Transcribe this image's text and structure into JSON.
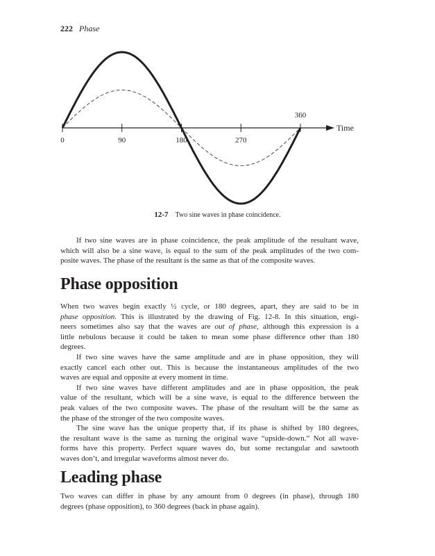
{
  "header": {
    "page_number": "222",
    "running_title": "Phase"
  },
  "figure": {
    "number": "12-7",
    "caption": "Two sine waves in phase coincidence.",
    "axis_label": "Time",
    "tick_labels": [
      "0",
      "90",
      "180",
      "270",
      "360"
    ],
    "tick_values": [
      0,
      90,
      180,
      270,
      360
    ],
    "series": [
      {
        "style": "solid-bold",
        "relative_amplitude": 2
      },
      {
        "style": "dashed",
        "relative_amplitude": 1
      }
    ]
  },
  "paragraphs_intro": [
    {
      "indent": true,
      "lines": [
        "If two sine waves are in phase coincidence, the peak amplitude of the resultant wave,",
        "which will also be a sine wave, is equal to the sum of the peak amplitudes of the two com-",
        "posite waves. The phase of the resultant is the same as that of the composite waves."
      ]
    }
  ],
  "section1": {
    "heading": "Phase opposition",
    "paragraphs": [
      {
        "indent": false,
        "lines": [
          "When two waves begin exactly ½ cycle, or 180 degrees, apart, they are said to be in",
          [
            [
              "phase opposition",
              true
            ],
            [
              ". This is illustrated by the drawing of Fig. 12-8. In this situation, engi-",
              false
            ]
          ],
          [
            [
              "neers sometimes also say that the waves are ",
              false
            ],
            [
              "out of phase",
              true
            ],
            [
              ", although this expression is a",
              false
            ]
          ],
          "little nebulous because it could be taken to mean some phase difference other than 180",
          "degrees."
        ]
      },
      {
        "indent": true,
        "lines": [
          "If two sine waves have the same amplitude and are in phase opposition, they will",
          "exactly cancel each other out. This is because the instantaneous amplitudes of the two",
          "waves are equal and opposite at every moment in time."
        ]
      },
      {
        "indent": true,
        "lines": [
          "If two sine waves have different amplitudes and are in phase opposition, the peak",
          "value of the resultant, which will be a sine wave, is equal to the difference between the",
          "peak values of the two composite waves. The phase of the resultant will be the same as",
          "the phase of the stronger of the two composite waves."
        ]
      },
      {
        "indent": true,
        "lines": [
          "The sine wave has the unique property that, if its phase is shifted by 180 degrees,",
          "the resultant wave is the same as turning the original wave “upside-down.” Not all wave-",
          "forms have this property. Perfect square waves do, but some rectangular and sawtooth",
          "waves don’t, and irregular waveforms almost never do."
        ]
      }
    ]
  },
  "section2": {
    "heading": "Leading phase",
    "paragraphs": [
      {
        "indent": false,
        "lines": [
          "Two waves can differ in phase by any amount from 0 degrees (in phase), through 180",
          "degrees (phase opposition), to 360 degrees (back in phase again)."
        ]
      }
    ]
  }
}
